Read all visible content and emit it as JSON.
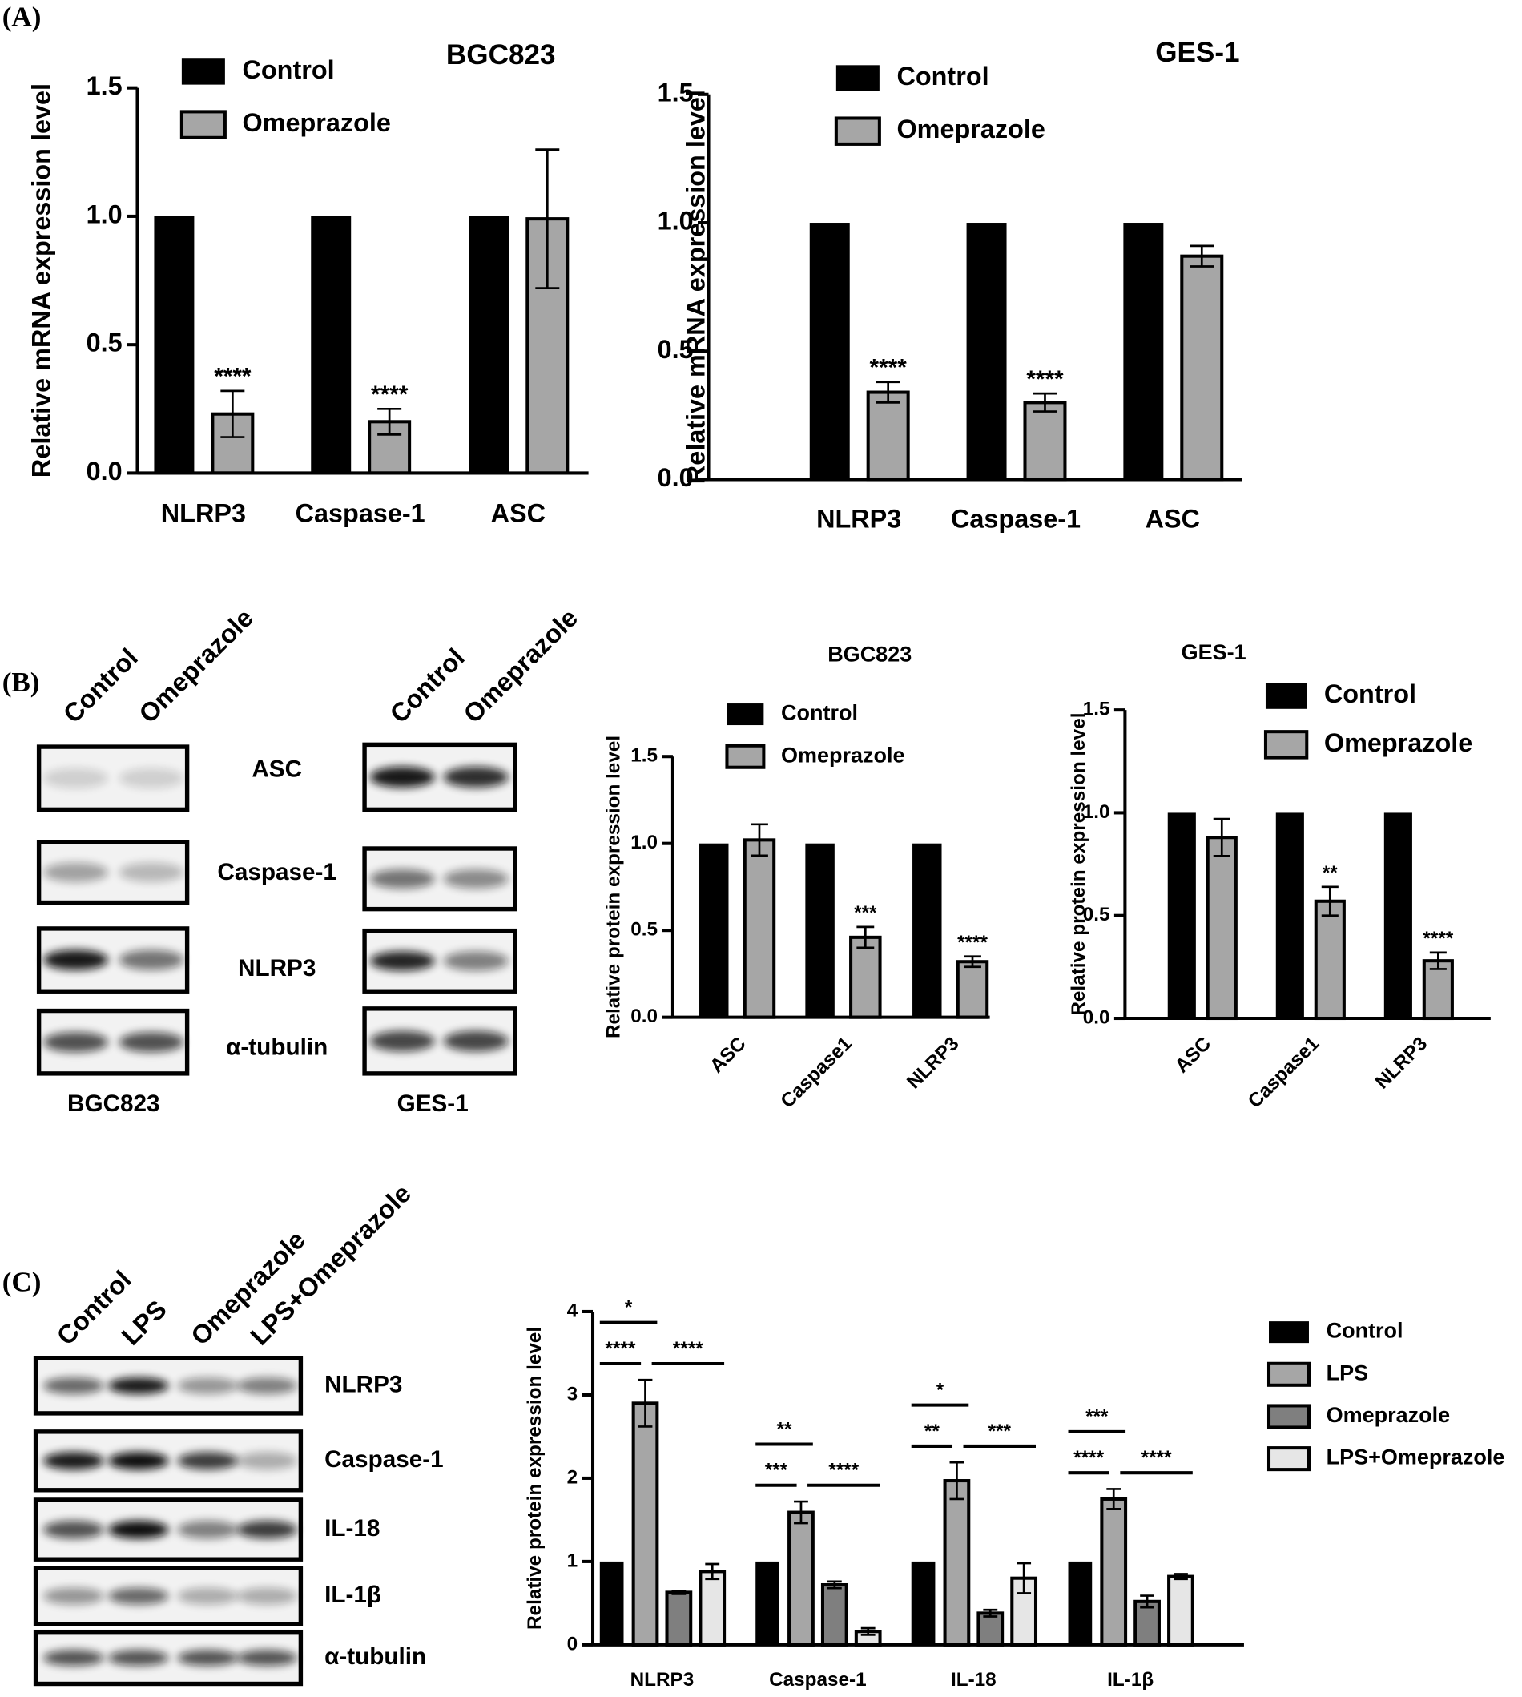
{
  "panel_labels": [
    "(A)",
    "(B)",
    "(C)"
  ],
  "blot_b": {
    "proteins": [
      "ASC",
      "Caspase-1",
      "NLRP3",
      "α-tubulin"
    ],
    "blots": [
      {
        "cell_line": "BGC823",
        "lanes": [
          "Control",
          "Omeprazole"
        ]
      },
      {
        "cell_line": "GES-1",
        "lanes": [
          "Control",
          "Omeprazole"
        ]
      }
    ]
  },
  "blot_c": {
    "proteins": [
      "NLRP3",
      "Caspase-1",
      "IL-18",
      "IL-1β",
      "α-tubulin"
    ],
    "lanes": [
      "Control",
      "LPS",
      "Omeprazole",
      "LPS+Omeprazole"
    ]
  },
  "chart_data": [
    {
      "type": "bar",
      "title": "BGC823",
      "ylabel": "Relative mRNA expression level",
      "categories": [
        "NLRP3",
        "Caspase-1",
        "ASC"
      ],
      "series": [
        {
          "name": "Control",
          "color": "#000000",
          "values": [
            1,
            1,
            1
          ]
        },
        {
          "name": "Omeprazole",
          "color": "#a6a6a6",
          "values": [
            0.23,
            0.2,
            0.99
          ],
          "errors": [
            0.09,
            0.05,
            0.27
          ],
          "significance": [
            "****",
            "****",
            null
          ]
        }
      ],
      "ylim": [
        0,
        1.5
      ],
      "yticks": [
        {
          "value": 0,
          "label": "0.0"
        },
        0.5,
        {
          "value": 1,
          "label": "1.0"
        },
        1.5
      ]
    },
    {
      "type": "bar",
      "title": "GES-1",
      "ylabel": "Relative mRNA expression level",
      "categories": [
        "NLRP3",
        "Caspase-1",
        "ASC"
      ],
      "series": [
        {
          "name": "Control",
          "color": "#000000",
          "values": [
            1,
            1,
            1
          ]
        },
        {
          "name": "Omeprazole",
          "color": "#a6a6a6",
          "values": [
            0.34,
            0.3,
            0.87
          ],
          "errors": [
            0.04,
            0.035,
            0.04
          ],
          "significance": [
            "****",
            "****",
            null
          ]
        }
      ],
      "ylim": [
        0,
        1.5
      ],
      "yticks": [
        {
          "value": 0,
          "label": "0.0"
        },
        0.5,
        {
          "value": 1,
          "label": "1.0"
        },
        1.5
      ]
    },
    {
      "type": "bar",
      "title": "BGC823",
      "ylabel": "Relative protein expression level",
      "categories": [
        "ASC",
        "Caspase1",
        "NLRP3"
      ],
      "series": [
        {
          "name": "Control",
          "color": "#000000",
          "values": [
            1,
            1,
            1
          ]
        },
        {
          "name": "Omeprazole",
          "color": "#a6a6a6",
          "values": [
            1.02,
            0.46,
            0.32
          ],
          "errors": [
            0.09,
            0.06,
            0.03
          ],
          "significance": [
            null,
            "***",
            "****"
          ]
        }
      ],
      "ylim": [
        0,
        1.5
      ],
      "yticks": [
        {
          "value": 0,
          "label": "0.0"
        },
        0.5,
        {
          "value": 1,
          "label": "1.0"
        },
        1.5
      ]
    },
    {
      "type": "bar",
      "title": "GES-1",
      "ylabel": "Relative protein expression level",
      "categories": [
        "ASC",
        "Caspase1",
        "NLRP3"
      ],
      "series": [
        {
          "name": "Control",
          "color": "#000000",
          "values": [
            1,
            1,
            1
          ]
        },
        {
          "name": "Omeprazole",
          "color": "#a6a6a6",
          "values": [
            0.88,
            0.57,
            0.28
          ],
          "errors": [
            0.09,
            0.07,
            0.04
          ],
          "significance": [
            null,
            "**",
            "****"
          ]
        }
      ],
      "ylim": [
        0,
        1.5
      ],
      "yticks": [
        {
          "value": 0,
          "label": "0.0"
        },
        0.5,
        {
          "value": 1,
          "label": "1.0"
        },
        1.5
      ]
    },
    {
      "type": "bar",
      "ylabel": "Relative protein expression level",
      "categories": [
        "NLRP3",
        "Caspase-1",
        "IL-18",
        "IL-1β"
      ],
      "series": [
        {
          "name": "Control",
          "color": "#000000",
          "values": [
            1,
            1,
            1,
            1
          ]
        },
        {
          "name": "LPS",
          "color": "#a6a6a6",
          "values": [
            2.9,
            1.59,
            1.97,
            1.75
          ],
          "errors": [
            0.28,
            0.13,
            0.22,
            0.12
          ]
        },
        {
          "name": "Omeprazole",
          "color": "#7f7f7f",
          "values": [
            0.63,
            0.72,
            0.38,
            0.52
          ],
          "errors": [
            0.02,
            0.04,
            0.04,
            0.07
          ]
        },
        {
          "name": "LPS+Omeprazole",
          "color": "#e6e6e6",
          "values": [
            0.88,
            0.16,
            0.8,
            0.82
          ],
          "errors": [
            0.09,
            0.04,
            0.18,
            0.03
          ]
        }
      ],
      "comparisons": [
        [
          {
            "groups": [
              0,
              1
            ],
            "label": "*"
          },
          {
            "groups": [
              0,
              1
            ],
            "label": "****"
          },
          {
            "groups": [
              1,
              3
            ],
            "label": "****"
          }
        ],
        [
          {
            "groups": [
              0,
              1
            ],
            "label": "**"
          },
          {
            "groups": [
              0,
              1
            ],
            "label": "***"
          },
          {
            "groups": [
              1,
              3
            ],
            "label": "****"
          }
        ],
        [
          {
            "groups": [
              0,
              1
            ],
            "label": "*"
          },
          {
            "groups": [
              0,
              1
            ],
            "label": "**"
          },
          {
            "groups": [
              1,
              3
            ],
            "label": "***"
          }
        ],
        [
          {
            "groups": [
              0,
              1
            ],
            "label": "***"
          },
          {
            "groups": [
              0,
              1
            ],
            "label": "****"
          },
          {
            "groups": [
              1,
              3
            ],
            "label": "****"
          }
        ]
      ],
      "ylim": [
        0,
        4
      ],
      "yticks": [
        0,
        1,
        2,
        3,
        4
      ]
    }
  ]
}
